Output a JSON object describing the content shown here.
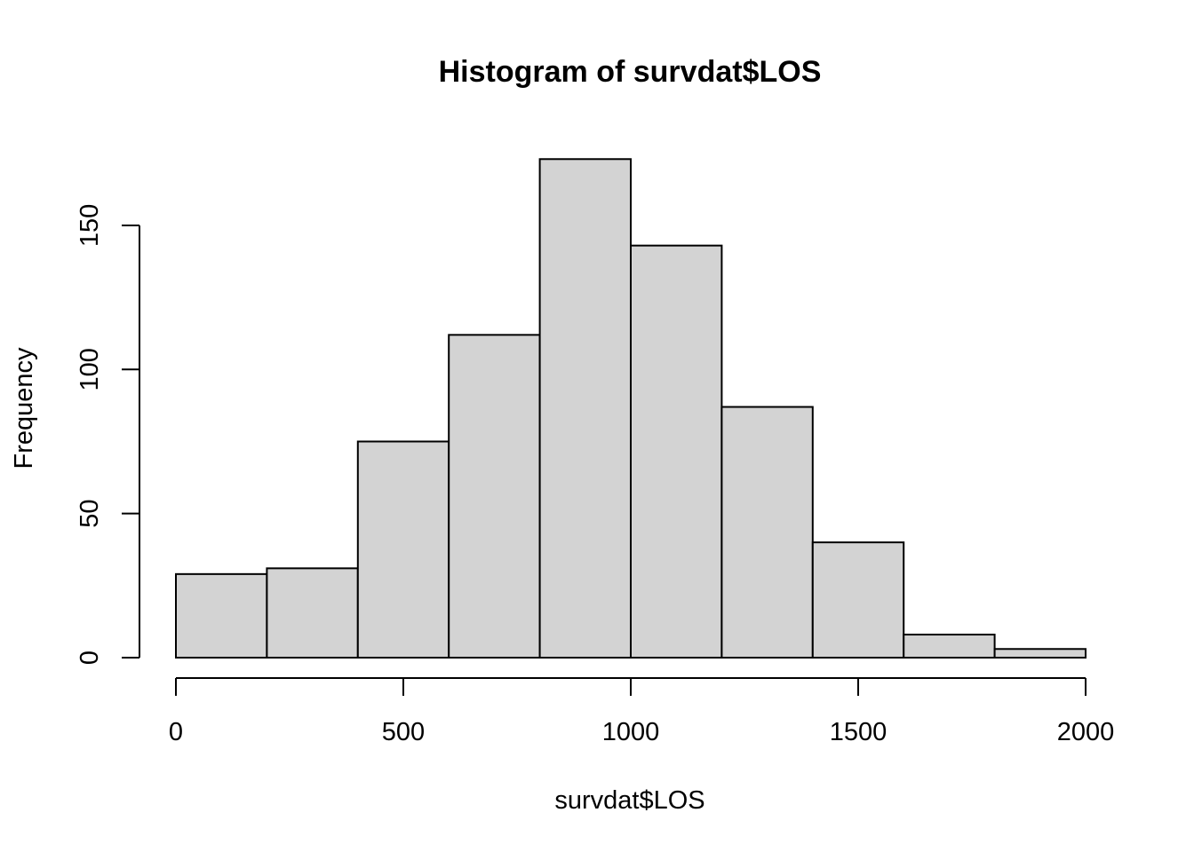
{
  "chart_data": {
    "type": "bar",
    "title": "Histogram of survdat$LOS",
    "xlabel": "survdat$LOS",
    "ylabel": "Frequency",
    "bins": [
      {
        "from": 0,
        "to": 200,
        "count": 29
      },
      {
        "from": 200,
        "to": 400,
        "count": 31
      },
      {
        "from": 400,
        "to": 600,
        "count": 75
      },
      {
        "from": 600,
        "to": 800,
        "count": 112
      },
      {
        "from": 800,
        "to": 1000,
        "count": 173
      },
      {
        "from": 1000,
        "to": 1200,
        "count": 143
      },
      {
        "from": 1200,
        "to": 1400,
        "count": 87
      },
      {
        "from": 1400,
        "to": 1600,
        "count": 40
      },
      {
        "from": 1600,
        "to": 1800,
        "count": 8
      },
      {
        "from": 1800,
        "to": 2000,
        "count": 3
      }
    ],
    "xlim": [
      0,
      2000
    ],
    "ylim": [
      0,
      173
    ],
    "x_ticks": [
      0,
      500,
      1000,
      1500,
      2000
    ],
    "y_ticks": [
      0,
      50,
      100,
      150
    ],
    "bar_color": "#d3d3d3",
    "border_color": "#000000",
    "grid": false,
    "legend": "none"
  }
}
